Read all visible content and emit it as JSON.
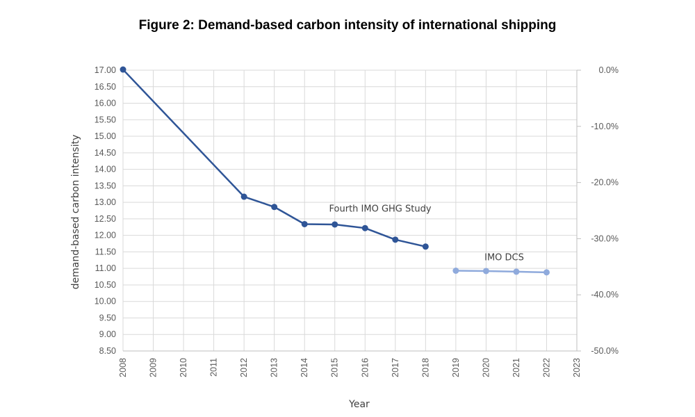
{
  "chart_data": {
    "type": "line",
    "title": "Figure 2: Demand-based carbon intensity of international shipping",
    "xlabel": "Year",
    "ylabel": "demand-based carbon intensity",
    "x_ticks": [
      "2008",
      "2009",
      "2010",
      "2011",
      "2012",
      "2013",
      "2014",
      "2015",
      "2016",
      "2017",
      "2018",
      "2019",
      "2020",
      "2021",
      "2022",
      "2023"
    ],
    "xlim": [
      2008,
      2023
    ],
    "ylim": [
      8.5,
      17.0
    ],
    "y_ticks": [
      "8.50",
      "9.00",
      "9.50",
      "10.00",
      "10.50",
      "11.00",
      "11.50",
      "12.00",
      "12.50",
      "13.00",
      "13.50",
      "14.00",
      "14.50",
      "15.00",
      "15.50",
      "16.00",
      "16.50",
      "17.00"
    ],
    "y2lim": [
      -50.0,
      0.0
    ],
    "y2_ticks": [
      "0.0%",
      "-10.0%",
      "-20.0%",
      "-30.0%",
      "-40.0%",
      "-50.0%"
    ],
    "grid": true,
    "series": [
      {
        "name": "",
        "color": "#2f5597",
        "x": [
          2008,
          2012,
          2013,
          2014,
          2015,
          2016,
          2017,
          2018
        ],
        "values": [
          17.02,
          13.17,
          12.86,
          12.34,
          12.33,
          12.22,
          11.87,
          11.66
        ]
      },
      {
        "name": "",
        "color": "#8faadc",
        "x": [
          2019,
          2020,
          2021,
          2022
        ],
        "values": [
          10.93,
          10.92,
          10.9,
          10.88
        ]
      }
    ],
    "annotations": [
      {
        "text": "Fourth IMO GHG Study",
        "x": 2016.5,
        "y": 12.72
      },
      {
        "text": "IMO DCS",
        "x": 2020.6,
        "y": 11.25
      }
    ]
  }
}
